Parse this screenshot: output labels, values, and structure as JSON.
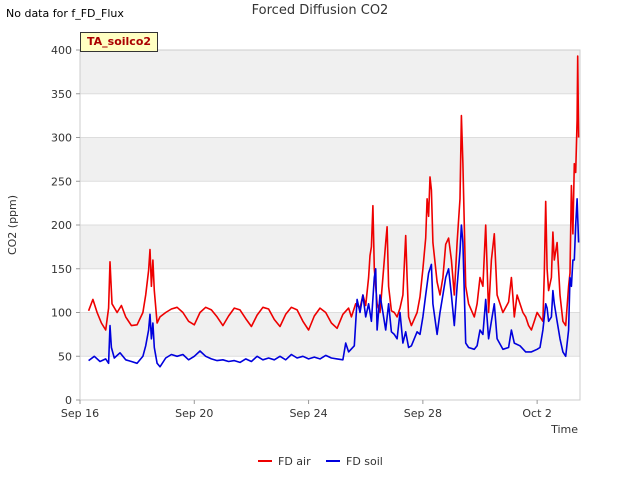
{
  "header": {
    "no_data_note": "No data for f_FD_Flux",
    "tag_label": "TA_soilco2"
  },
  "colors": {
    "fd_air": "#ee0000",
    "fd_soil": "#0000dd",
    "band": "#f0f0f0",
    "grid": "#dddddd"
  },
  "chart_data": {
    "type": "line",
    "title": "Forced Diffusion CO2",
    "xlabel": "Time",
    "ylabel": "CO2 (ppm)",
    "ylim": [
      0,
      400
    ],
    "xlim": [
      0,
      17.5
    ],
    "x_unit": "days since Sep 16",
    "xticks": [
      {
        "x": 0,
        "label": "Sep 16"
      },
      {
        "x": 4,
        "label": "Sep 20"
      },
      {
        "x": 8,
        "label": "Sep 24"
      },
      {
        "x": 12,
        "label": "Sep 28"
      },
      {
        "x": 16,
        "label": "Oct 2"
      }
    ],
    "yticks": [
      0,
      50,
      100,
      150,
      200,
      250,
      300,
      350,
      400
    ],
    "legend": {
      "position": "bottom-center"
    },
    "series": [
      {
        "name": "FD air",
        "color": "#ee0000",
        "points": [
          [
            0.3,
            102
          ],
          [
            0.45,
            115
          ],
          [
            0.6,
            100
          ],
          [
            0.75,
            88
          ],
          [
            0.9,
            80
          ],
          [
            1.0,
            105
          ],
          [
            1.05,
            158
          ],
          [
            1.12,
            110
          ],
          [
            1.3,
            100
          ],
          [
            1.45,
            108
          ],
          [
            1.6,
            95
          ],
          [
            1.8,
            85
          ],
          [
            2.0,
            86
          ],
          [
            2.2,
            100
          ],
          [
            2.3,
            120
          ],
          [
            2.4,
            148
          ],
          [
            2.45,
            172
          ],
          [
            2.5,
            130
          ],
          [
            2.55,
            160
          ],
          [
            2.6,
            125
          ],
          [
            2.7,
            88
          ],
          [
            2.8,
            95
          ],
          [
            3.0,
            100
          ],
          [
            3.2,
            104
          ],
          [
            3.4,
            106
          ],
          [
            3.6,
            100
          ],
          [
            3.8,
            90
          ],
          [
            4.0,
            86
          ],
          [
            4.2,
            100
          ],
          [
            4.4,
            106
          ],
          [
            4.6,
            103
          ],
          [
            4.8,
            95
          ],
          [
            5.0,
            85
          ],
          [
            5.2,
            96
          ],
          [
            5.4,
            105
          ],
          [
            5.6,
            103
          ],
          [
            5.8,
            93
          ],
          [
            6.0,
            84
          ],
          [
            6.2,
            97
          ],
          [
            6.4,
            106
          ],
          [
            6.6,
            104
          ],
          [
            6.8,
            92
          ],
          [
            7.0,
            84
          ],
          [
            7.2,
            98
          ],
          [
            7.4,
            106
          ],
          [
            7.6,
            103
          ],
          [
            7.8,
            90
          ],
          [
            8.0,
            80
          ],
          [
            8.2,
            96
          ],
          [
            8.4,
            105
          ],
          [
            8.6,
            100
          ],
          [
            8.8,
            88
          ],
          [
            9.0,
            82
          ],
          [
            9.2,
            98
          ],
          [
            9.4,
            105
          ],
          [
            9.5,
            95
          ],
          [
            9.65,
            110
          ],
          [
            9.8,
            105
          ],
          [
            9.9,
            120
          ],
          [
            10.0,
            108
          ],
          [
            10.1,
            140
          ],
          [
            10.15,
            165
          ],
          [
            10.2,
            175
          ],
          [
            10.25,
            222
          ],
          [
            10.3,
            150
          ],
          [
            10.4,
            110
          ],
          [
            10.5,
            100
          ],
          [
            10.6,
            140
          ],
          [
            10.7,
            180
          ],
          [
            10.75,
            198
          ],
          [
            10.8,
            130
          ],
          [
            10.9,
            102
          ],
          [
            11.0,
            100
          ],
          [
            11.1,
            95
          ],
          [
            11.2,
            105
          ],
          [
            11.3,
            120
          ],
          [
            11.4,
            188
          ],
          [
            11.45,
            140
          ],
          [
            11.5,
            95
          ],
          [
            11.6,
            85
          ],
          [
            11.8,
            100
          ],
          [
            11.9,
            118
          ],
          [
            12.0,
            150
          ],
          [
            12.1,
            185
          ],
          [
            12.15,
            230
          ],
          [
            12.2,
            210
          ],
          [
            12.25,
            255
          ],
          [
            12.3,
            240
          ],
          [
            12.35,
            180
          ],
          [
            12.5,
            135
          ],
          [
            12.6,
            120
          ],
          [
            12.7,
            140
          ],
          [
            12.8,
            178
          ],
          [
            12.9,
            185
          ],
          [
            13.0,
            160
          ],
          [
            13.1,
            120
          ],
          [
            13.2,
            180
          ],
          [
            13.3,
            230
          ],
          [
            13.35,
            325
          ],
          [
            13.4,
            270
          ],
          [
            13.5,
            130
          ],
          [
            13.6,
            110
          ],
          [
            13.8,
            95
          ],
          [
            13.9,
            110
          ],
          [
            14.0,
            140
          ],
          [
            14.1,
            130
          ],
          [
            14.2,
            200
          ],
          [
            14.3,
            100
          ],
          [
            14.4,
            160
          ],
          [
            14.5,
            190
          ],
          [
            14.6,
            120
          ],
          [
            14.8,
            100
          ],
          [
            15.0,
            112
          ],
          [
            15.1,
            140
          ],
          [
            15.15,
            118
          ],
          [
            15.2,
            95
          ],
          [
            15.3,
            120
          ],
          [
            15.4,
            110
          ],
          [
            15.5,
            100
          ],
          [
            15.6,
            95
          ],
          [
            15.7,
            85
          ],
          [
            15.8,
            80
          ],
          [
            15.9,
            90
          ],
          [
            16.0,
            100
          ],
          [
            16.1,
            95
          ],
          [
            16.2,
            90
          ],
          [
            16.25,
            145
          ],
          [
            16.3,
            227
          ],
          [
            16.35,
            150
          ],
          [
            16.4,
            125
          ],
          [
            16.5,
            140
          ],
          [
            16.55,
            192
          ],
          [
            16.6,
            160
          ],
          [
            16.7,
            180
          ],
          [
            16.8,
            120
          ],
          [
            16.9,
            90
          ],
          [
            17.0,
            85
          ],
          [
            17.1,
            130
          ],
          [
            17.15,
            145
          ],
          [
            17.2,
            245
          ],
          [
            17.25,
            190
          ],
          [
            17.3,
            270
          ],
          [
            17.35,
            260
          ],
          [
            17.4,
            320
          ],
          [
            17.42,
            393
          ],
          [
            17.45,
            300
          ]
        ]
      },
      {
        "name": "FD soil",
        "color": "#0000dd",
        "points": [
          [
            0.3,
            45
          ],
          [
            0.5,
            50
          ],
          [
            0.7,
            44
          ],
          [
            0.9,
            47
          ],
          [
            1.0,
            42
          ],
          [
            1.05,
            85
          ],
          [
            1.1,
            60
          ],
          [
            1.2,
            48
          ],
          [
            1.4,
            54
          ],
          [
            1.6,
            46
          ],
          [
            1.8,
            44
          ],
          [
            2.0,
            42
          ],
          [
            2.2,
            50
          ],
          [
            2.3,
            62
          ],
          [
            2.4,
            80
          ],
          [
            2.45,
            98
          ],
          [
            2.5,
            70
          ],
          [
            2.55,
            88
          ],
          [
            2.6,
            60
          ],
          [
            2.7,
            42
          ],
          [
            2.8,
            38
          ],
          [
            3.0,
            48
          ],
          [
            3.2,
            52
          ],
          [
            3.4,
            50
          ],
          [
            3.6,
            52
          ],
          [
            3.8,
            46
          ],
          [
            4.0,
            50
          ],
          [
            4.2,
            56
          ],
          [
            4.4,
            50
          ],
          [
            4.6,
            47
          ],
          [
            4.8,
            45
          ],
          [
            5.0,
            46
          ],
          [
            5.2,
            44
          ],
          [
            5.4,
            45
          ],
          [
            5.6,
            43
          ],
          [
            5.8,
            47
          ],
          [
            6.0,
            44
          ],
          [
            6.2,
            50
          ],
          [
            6.4,
            46
          ],
          [
            6.6,
            48
          ],
          [
            6.8,
            46
          ],
          [
            7.0,
            50
          ],
          [
            7.2,
            46
          ],
          [
            7.4,
            52
          ],
          [
            7.6,
            48
          ],
          [
            7.8,
            50
          ],
          [
            8.0,
            47
          ],
          [
            8.2,
            49
          ],
          [
            8.4,
            47
          ],
          [
            8.6,
            51
          ],
          [
            8.8,
            48
          ],
          [
            9.0,
            47
          ],
          [
            9.2,
            46
          ],
          [
            9.3,
            65
          ],
          [
            9.4,
            55
          ],
          [
            9.6,
            62
          ],
          [
            9.7,
            115
          ],
          [
            9.8,
            100
          ],
          [
            9.9,
            120
          ],
          [
            10.0,
            95
          ],
          [
            10.1,
            110
          ],
          [
            10.2,
            90
          ],
          [
            10.3,
            140
          ],
          [
            10.35,
            150
          ],
          [
            10.4,
            80
          ],
          [
            10.5,
            120
          ],
          [
            10.6,
            100
          ],
          [
            10.7,
            80
          ],
          [
            10.8,
            110
          ],
          [
            10.9,
            78
          ],
          [
            11.0,
            75
          ],
          [
            11.1,
            70
          ],
          [
            11.2,
            100
          ],
          [
            11.3,
            65
          ],
          [
            11.4,
            78
          ],
          [
            11.5,
            60
          ],
          [
            11.6,
            62
          ],
          [
            11.8,
            78
          ],
          [
            11.9,
            75
          ],
          [
            12.0,
            95
          ],
          [
            12.1,
            120
          ],
          [
            12.2,
            145
          ],
          [
            12.3,
            155
          ],
          [
            12.35,
            110
          ],
          [
            12.5,
            75
          ],
          [
            12.6,
            100
          ],
          [
            12.7,
            120
          ],
          [
            12.8,
            140
          ],
          [
            12.9,
            150
          ],
          [
            13.0,
            120
          ],
          [
            13.1,
            85
          ],
          [
            13.2,
            130
          ],
          [
            13.3,
            170
          ],
          [
            13.35,
            200
          ],
          [
            13.4,
            180
          ],
          [
            13.5,
            65
          ],
          [
            13.6,
            60
          ],
          [
            13.8,
            58
          ],
          [
            13.9,
            62
          ],
          [
            14.0,
            80
          ],
          [
            14.1,
            75
          ],
          [
            14.2,
            115
          ],
          [
            14.3,
            70
          ],
          [
            14.4,
            90
          ],
          [
            14.5,
            110
          ],
          [
            14.6,
            70
          ],
          [
            14.8,
            58
          ],
          [
            15.0,
            60
          ],
          [
            15.1,
            80
          ],
          [
            15.2,
            65
          ],
          [
            15.4,
            62
          ],
          [
            15.6,
            55
          ],
          [
            15.8,
            55
          ],
          [
            16.0,
            58
          ],
          [
            16.1,
            60
          ],
          [
            16.2,
            80
          ],
          [
            16.3,
            110
          ],
          [
            16.35,
            105
          ],
          [
            16.4,
            90
          ],
          [
            16.5,
            95
          ],
          [
            16.55,
            125
          ],
          [
            16.6,
            110
          ],
          [
            16.7,
            90
          ],
          [
            16.8,
            70
          ],
          [
            16.9,
            55
          ],
          [
            17.0,
            50
          ],
          [
            17.1,
            80
          ],
          [
            17.15,
            140
          ],
          [
            17.2,
            130
          ],
          [
            17.25,
            160
          ],
          [
            17.3,
            160
          ],
          [
            17.35,
            200
          ],
          [
            17.4,
            230
          ],
          [
            17.45,
            180
          ]
        ]
      }
    ]
  }
}
